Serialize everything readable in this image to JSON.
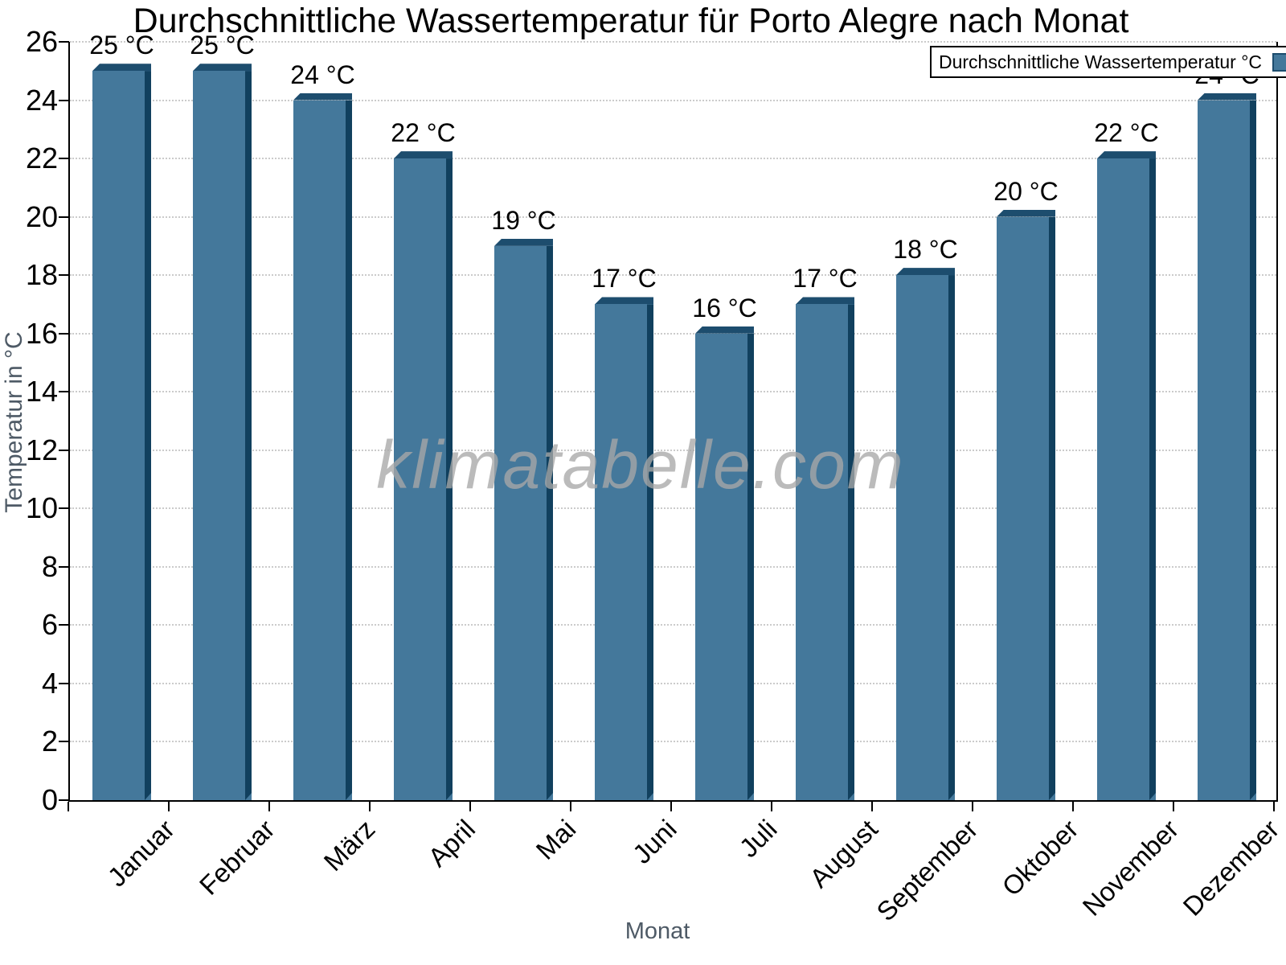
{
  "chart_data": {
    "type": "bar",
    "title": "Durchschnittliche Wassertemperatur für Porto Alegre nach Monat",
    "watermark": "klimatabelle.com",
    "xlabel": "Monat",
    "ylabel": "Temperatur in °C",
    "legend": {
      "label": "Durchschnittliche Wassertemperatur °C",
      "position": "top-right"
    },
    "categories": [
      "Januar",
      "Februar",
      "März",
      "April",
      "Mai",
      "Juni",
      "Juli",
      "August",
      "September",
      "Oktober",
      "November",
      "Dezember"
    ],
    "values": [
      25,
      25,
      24,
      22,
      19,
      17,
      16,
      17,
      18,
      20,
      22,
      24
    ],
    "data_labels": [
      "25 °C",
      "25 °C",
      "24 °C",
      "22 °C",
      "19 °C",
      "17 °C",
      "16 °C",
      "17 °C",
      "18 °C",
      "20 °C",
      "22 °C",
      "24 °C"
    ],
    "ylim": [
      0,
      26
    ],
    "yticks": [
      0,
      2,
      4,
      6,
      8,
      10,
      12,
      14,
      16,
      18,
      20,
      22,
      24,
      26
    ],
    "grid": {
      "horizontal": true,
      "style": "dotted",
      "color": "#cbcbcb"
    },
    "colors": {
      "bar_face": "#44789b",
      "bar_top": "#1d4d6e",
      "bar_side": "#11405e",
      "axis_line": "#000000",
      "axis_title": "#4e5a66",
      "tick_label": "#000000",
      "watermark": "#a8a8a8"
    }
  }
}
